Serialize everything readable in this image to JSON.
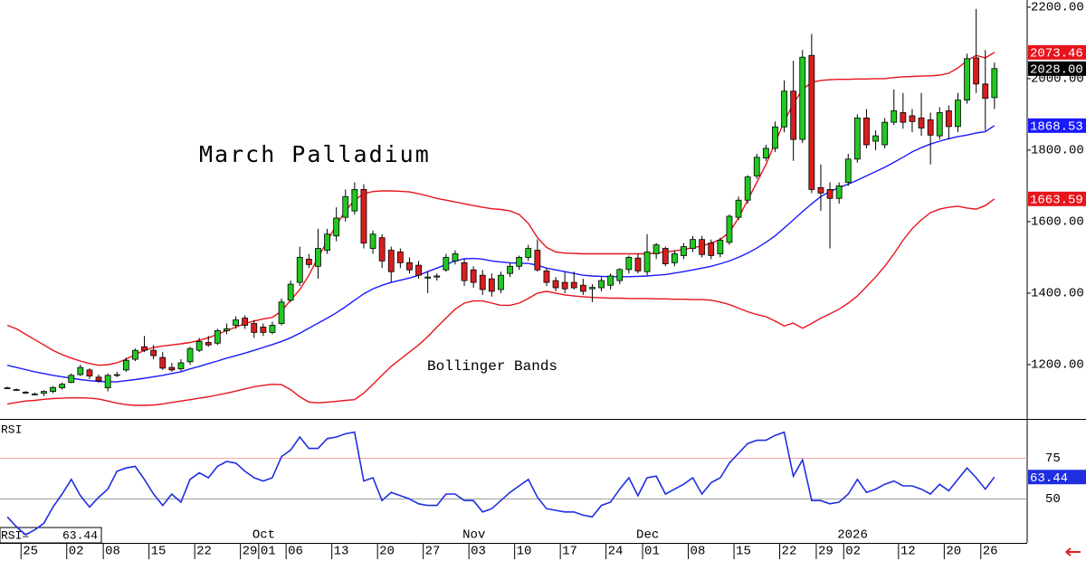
{
  "chart_data": [
    {
      "type": "candlestick",
      "title": "March Palladium",
      "annotation": "Bollinger Bands",
      "up_color": "#21c821",
      "down_color": "#d81e1e",
      "categories": [
        null,
        null,
        "25",
        null,
        null,
        null,
        null,
        "02",
        null,
        null,
        null,
        "08",
        null,
        null,
        null,
        null,
        "15",
        null,
        null,
        null,
        null,
        "22",
        null,
        null,
        null,
        null,
        "29",
        null,
        "01",
        null,
        null,
        "06",
        null,
        null,
        null,
        null,
        "13",
        null,
        null,
        null,
        null,
        "20",
        null,
        null,
        null,
        null,
        "27",
        null,
        null,
        null,
        null,
        "03",
        null,
        null,
        null,
        null,
        "10",
        null,
        null,
        null,
        null,
        "17",
        null,
        null,
        null,
        null,
        "24",
        null,
        null,
        null,
        "01",
        null,
        null,
        null,
        null,
        "08",
        null,
        null,
        null,
        null,
        "15",
        null,
        null,
        null,
        null,
        "22",
        null,
        null,
        null,
        "29",
        null,
        null,
        "02",
        null,
        null,
        null,
        null,
        null,
        "12",
        null,
        null,
        null,
        null,
        "20",
        null,
        null,
        null,
        "26",
        null
      ],
      "months": [
        null,
        null,
        null,
        null,
        null,
        null,
        null,
        null,
        null,
        null,
        null,
        null,
        null,
        null,
        null,
        null,
        null,
        null,
        null,
        null,
        null,
        null,
        null,
        null,
        null,
        null,
        null,
        null,
        "Oct",
        null,
        null,
        null,
        null,
        null,
        null,
        null,
        null,
        null,
        null,
        null,
        null,
        null,
        null,
        null,
        null,
        null,
        null,
        null,
        null,
        null,
        null,
        "Nov",
        null,
        null,
        null,
        null,
        null,
        null,
        null,
        null,
        null,
        null,
        null,
        null,
        null,
        null,
        null,
        null,
        null,
        null,
        "Dec",
        null,
        null,
        null,
        null,
        null,
        null,
        null,
        null,
        null,
        null,
        null,
        null,
        null,
        null,
        null,
        null,
        null,
        null,
        null,
        null,
        null,
        "2026",
        null,
        null,
        null,
        null,
        null,
        null,
        null,
        null,
        null,
        null,
        null,
        null,
        null,
        null,
        null,
        null
      ],
      "open": [
        1135,
        1130,
        1122,
        1118,
        1120,
        1125,
        1135,
        1150,
        1172,
        1185,
        1165,
        1135,
        1170,
        1185,
        1215,
        1250,
        1240,
        1220,
        1192,
        1188,
        1208,
        1240,
        1262,
        1260,
        1295,
        1310,
        1330,
        1315,
        1305,
        1290,
        1315,
        1380,
        1430,
        1495,
        1475,
        1520,
        1560,
        1612,
        1630,
        1690,
        1525,
        1555,
        1520,
        1515,
        1485,
        1478,
        1442,
        1445,
        1465,
        1490,
        1485,
        1465,
        1450,
        1440,
        1410,
        1455,
        1475,
        1500,
        1520,
        1462,
        1435,
        1430,
        1430,
        1422,
        1412,
        1415,
        1422,
        1435,
        1466,
        1498,
        1460,
        1510,
        1525,
        1485,
        1505,
        1525,
        1550,
        1540,
        1510,
        1542,
        1612,
        1660,
        1728,
        1778,
        1805,
        1865,
        1965,
        1830,
        2065,
        1695,
        1690,
        1665,
        1710,
        1775,
        1890,
        1825,
        1815,
        1878,
        1905,
        1896,
        1890,
        1885,
        1840,
        1910,
        1866,
        1940,
        2058,
        1985,
        1947
      ],
      "high": [
        1138,
        1133,
        1126,
        1122,
        1128,
        1140,
        1150,
        1175,
        1200,
        1190,
        1172,
        1175,
        1180,
        1220,
        1245,
        1280,
        1255,
        1235,
        1205,
        1215,
        1250,
        1275,
        1280,
        1300,
        1315,
        1335,
        1338,
        1325,
        1315,
        1320,
        1385,
        1435,
        1530,
        1510,
        1580,
        1580,
        1640,
        1690,
        1710,
        1705,
        1575,
        1565,
        1530,
        1525,
        1500,
        1490,
        1460,
        1455,
        1510,
        1520,
        1495,
        1475,
        1465,
        1455,
        1460,
        1485,
        1505,
        1535,
        1550,
        1470,
        1445,
        1460,
        1460,
        1440,
        1425,
        1445,
        1455,
        1470,
        1505,
        1510,
        1565,
        1540,
        1530,
        1520,
        1540,
        1560,
        1560,
        1550,
        1555,
        1620,
        1670,
        1730,
        1790,
        1815,
        1880,
        1995,
        2050,
        2080,
        2125,
        1760,
        1710,
        1710,
        1790,
        1900,
        1915,
        1855,
        1890,
        1970,
        1960,
        1915,
        1960,
        1905,
        1920,
        1925,
        1960,
        2070,
        2195,
        2080,
        2045
      ],
      "low": [
        1132,
        1127,
        1118,
        1114,
        1112,
        1120,
        1130,
        1148,
        1168,
        1160,
        1150,
        1125,
        1165,
        1180,
        1210,
        1235,
        1215,
        1185,
        1180,
        1182,
        1200,
        1235,
        1250,
        1255,
        1285,
        1300,
        1300,
        1275,
        1280,
        1285,
        1310,
        1375,
        1420,
        1470,
        1440,
        1510,
        1545,
        1600,
        1620,
        1525,
        1510,
        1470,
        1430,
        1470,
        1455,
        1440,
        1400,
        1435,
        1460,
        1480,
        1420,
        1415,
        1395,
        1390,
        1400,
        1445,
        1465,
        1490,
        1460,
        1420,
        1405,
        1400,
        1410,
        1395,
        1375,
        1405,
        1410,
        1425,
        1455,
        1455,
        1450,
        1495,
        1475,
        1475,
        1495,
        1515,
        1500,
        1495,
        1500,
        1535,
        1605,
        1650,
        1720,
        1770,
        1795,
        1850,
        1770,
        1820,
        1680,
        1630,
        1525,
        1650,
        1700,
        1765,
        1805,
        1800,
        1805,
        1870,
        1860,
        1850,
        1840,
        1760,
        1830,
        1830,
        1850,
        1930,
        1960,
        1855,
        1915
      ],
      "close": [
        1135,
        1130,
        1123,
        1118,
        1125,
        1136,
        1145,
        1170,
        1192,
        1168,
        1155,
        1170,
        1172,
        1212,
        1240,
        1240,
        1225,
        1190,
        1185,
        1205,
        1245,
        1265,
        1255,
        1295,
        1300,
        1325,
        1310,
        1290,
        1290,
        1310,
        1375,
        1425,
        1500,
        1480,
        1525,
        1565,
        1610,
        1670,
        1690,
        1540,
        1565,
        1490,
        1460,
        1485,
        1465,
        1450,
        1445,
        1448,
        1500,
        1510,
        1435,
        1430,
        1410,
        1405,
        1450,
        1475,
        1500,
        1525,
        1465,
        1430,
        1415,
        1412,
        1415,
        1405,
        1416,
        1435,
        1448,
        1466,
        1500,
        1462,
        1515,
        1535,
        1482,
        1510,
        1530,
        1550,
        1508,
        1505,
        1548,
        1615,
        1660,
        1725,
        1780,
        1805,
        1865,
        1965,
        1830,
        2060,
        1690,
        1680,
        1665,
        1700,
        1775,
        1890,
        1815,
        1840,
        1878,
        1910,
        1878,
        1880,
        1862,
        1842,
        1905,
        1866,
        1940,
        2056,
        1985,
        1945,
        2028
      ],
      "close_last_label": "2028.00",
      "series": [
        {
          "color": "#e8141c",
          "last_label": "2073.46",
          "values": [
            1310,
            1300,
            1285,
            1270,
            1255,
            1240,
            1228,
            1218,
            1210,
            1203,
            1198,
            1200,
            1205,
            1215,
            1228,
            1240,
            1248,
            1252,
            1255,
            1258,
            1262,
            1268,
            1275,
            1285,
            1295,
            1305,
            1315,
            1322,
            1328,
            1332,
            1350,
            1380,
            1410,
            1450,
            1500,
            1545,
            1590,
            1630,
            1660,
            1678,
            1684,
            1686,
            1686,
            1685,
            1683,
            1678,
            1672,
            1665,
            1660,
            1655,
            1650,
            1645,
            1640,
            1636,
            1634,
            1630,
            1620,
            1595,
            1555,
            1528,
            1515,
            1512,
            1511,
            1510,
            1510,
            1510,
            1510,
            1510,
            1510,
            1510,
            1510,
            1512,
            1515,
            1518,
            1522,
            1527,
            1532,
            1540,
            1550,
            1570,
            1610,
            1660,
            1710,
            1760,
            1820,
            1880,
            1930,
            1970,
            1990,
            1995,
            1997,
            1998,
            1998,
            1999,
            1999,
            2000,
            2000,
            2003,
            2005,
            2006,
            2007,
            2008,
            2010,
            2015,
            2030,
            2050,
            2065,
            2058,
            2073.46
          ]
        },
        {
          "color": "#1a1aff",
          "last_label": "1868.53",
          "values": [
            1198,
            1192,
            1186,
            1180,
            1175,
            1170,
            1166,
            1162,
            1158,
            1155,
            1153,
            1152,
            1152,
            1155,
            1158,
            1162,
            1166,
            1170,
            1175,
            1180,
            1188,
            1195,
            1203,
            1210,
            1218,
            1225,
            1232,
            1240,
            1248,
            1256,
            1265,
            1275,
            1288,
            1302,
            1316,
            1330,
            1345,
            1362,
            1380,
            1398,
            1412,
            1422,
            1430,
            1436,
            1442,
            1450,
            1460,
            1470,
            1480,
            1490,
            1496,
            1497,
            1495,
            1490,
            1487,
            1485,
            1484,
            1483,
            1478,
            1470,
            1465,
            1460,
            1455,
            1450,
            1448,
            1447,
            1446,
            1446,
            1446,
            1447,
            1448,
            1450,
            1452,
            1456,
            1460,
            1465,
            1470,
            1475,
            1482,
            1490,
            1500,
            1512,
            1526,
            1542,
            1560,
            1582,
            1605,
            1628,
            1650,
            1670,
            1684,
            1695,
            1705,
            1716,
            1728,
            1740,
            1752,
            1766,
            1780,
            1795,
            1807,
            1817,
            1825,
            1832,
            1838,
            1842,
            1848,
            1852,
            1868.53
          ]
        },
        {
          "color": "#e8141c",
          "last_label": "1663.59",
          "values": [
            1090,
            1094,
            1098,
            1100,
            1103,
            1105,
            1106,
            1107,
            1107,
            1106,
            1104,
            1098,
            1092,
            1088,
            1086,
            1086,
            1087,
            1090,
            1094,
            1098,
            1102,
            1106,
            1110,
            1115,
            1120,
            1126,
            1132,
            1138,
            1142,
            1145,
            1144,
            1130,
            1110,
            1095,
            1093,
            1095,
            1097,
            1100,
            1102,
            1120,
            1145,
            1170,
            1195,
            1215,
            1235,
            1255,
            1278,
            1305,
            1330,
            1355,
            1372,
            1378,
            1378,
            1372,
            1366,
            1366,
            1372,
            1385,
            1400,
            1405,
            1400,
            1395,
            1392,
            1390,
            1388,
            1387,
            1386,
            1386,
            1385,
            1385,
            1385,
            1384,
            1384,
            1383,
            1383,
            1382,
            1382,
            1380,
            1375,
            1368,
            1358,
            1348,
            1340,
            1334,
            1322,
            1308,
            1316,
            1302,
            1315,
            1330,
            1342,
            1355,
            1372,
            1392,
            1418,
            1445,
            1475,
            1510,
            1548,
            1580,
            1605,
            1625,
            1635,
            1640,
            1643,
            1638,
            1635,
            1645,
            1663.59
          ]
        }
      ],
      "ylim": [
        1048,
        2220
      ],
      "yticks": [
        {
          "value": 1200,
          "label": "1200.00"
        },
        {
          "value": 1400,
          "label": "1400.00"
        },
        {
          "value": 1600,
          "label": "1600.00"
        },
        {
          "value": 1800,
          "label": "1800.00"
        },
        {
          "value": 2000,
          "label": "2000.00"
        },
        {
          "value": 2200,
          "label": "2200.00"
        }
      ]
    },
    {
      "type": "line",
      "title": "RSI",
      "readout_label": "RSI=",
      "color": "#1f2fe0",
      "values": [
        39,
        33,
        28,
        31,
        35,
        45,
        53,
        62,
        52,
        45,
        51,
        56,
        67,
        69,
        70,
        62,
        53,
        46,
        53,
        48,
        62,
        66,
        63,
        70,
        73,
        72,
        67,
        63,
        61,
        63,
        76,
        80,
        88,
        81,
        81,
        87,
        88,
        90,
        91,
        61,
        63,
        49,
        54,
        52,
        50,
        47,
        46,
        46,
        53,
        53,
        49,
        49,
        42,
        44,
        49,
        54,
        58,
        62,
        51,
        44,
        43,
        42,
        42,
        40,
        39,
        46,
        48,
        56,
        63,
        52,
        63,
        64,
        53,
        56,
        59,
        63,
        53,
        60,
        63,
        72,
        78,
        84,
        86,
        86,
        89,
        91,
        64,
        74,
        49,
        49,
        47,
        48,
        53,
        62,
        54,
        56,
        59,
        61,
        58,
        58,
        56,
        53,
        59,
        55,
        62,
        69,
        63,
        56,
        63.44
      ],
      "ylim": [
        23,
        98
      ],
      "yticks": [
        50,
        75
      ],
      "tick_colors": [
        "#9a9a9a",
        "#f2a0a0"
      ]
    }
  ]
}
